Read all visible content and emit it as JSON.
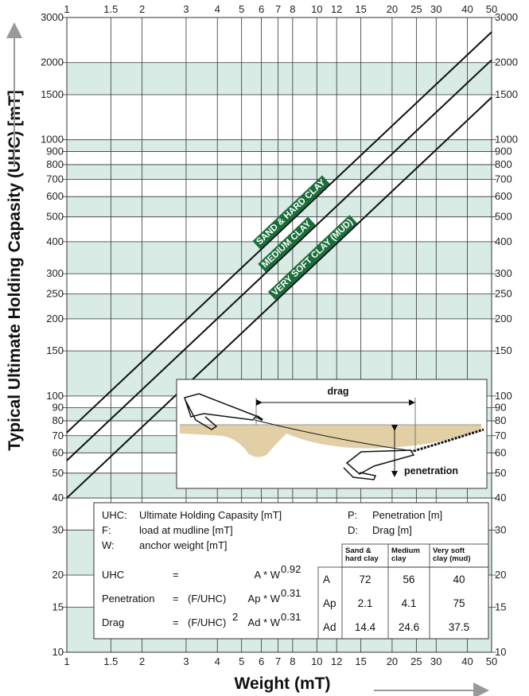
{
  "chart_data": {
    "type": "line",
    "xlabel": "Weight (mT)",
    "ylabel": "Typical Ultimate Holding Capasity (UHC) [mT]",
    "x_scale": "log",
    "y_scale": "log",
    "xlim": [
      1,
      50
    ],
    "ylim": [
      10,
      3000
    ],
    "x_ticks": [
      1,
      1.5,
      2,
      3,
      4,
      5,
      6,
      7,
      8,
      10,
      12,
      15,
      20,
      25,
      30,
      40,
      50
    ],
    "y_ticks": [
      10,
      15,
      20,
      30,
      40,
      50,
      60,
      70,
      80,
      90,
      100,
      150,
      200,
      250,
      300,
      400,
      500,
      600,
      700,
      800,
      900,
      1000,
      1500,
      2000,
      3000
    ],
    "band_color": "#d8ebe4",
    "line_color": "#111111",
    "label_color": "#1a6e3a",
    "series": [
      {
        "name": "SAND & HARD CLAY",
        "A": 72,
        "exponent": 0.92
      },
      {
        "name": "MEDIUM CLAY",
        "A": 56,
        "exponent": 0.92
      },
      {
        "name": "VERY SOFT CLAY (MUD)",
        "A": 40,
        "exponent": 0.92
      }
    ]
  },
  "diagram": {
    "drag_label": "drag",
    "penetration_label": "penetration",
    "seabed_color": "#e2cfa6"
  },
  "legend": {
    "definitions": [
      {
        "abbr": "UHC:",
        "text": "Ultimate Holding Capasity [mT]"
      },
      {
        "abbr": "F:",
        "text": "load at mudline [mT]"
      },
      {
        "abbr": "W:",
        "text": "anchor weight [mT]"
      },
      {
        "abbr": "P:",
        "text": "Penetration [m]"
      },
      {
        "abbr": "D:",
        "text": "Drag [m]"
      }
    ],
    "formulas": [
      {
        "name": "UHC",
        "eq": "=",
        "lhs": "",
        "coef": "A * W",
        "exp": "0.92"
      },
      {
        "name": "Penetration",
        "eq": "=",
        "lhs": "(F/UHC)",
        "coef": "Ap * W",
        "exp": "0.31"
      },
      {
        "name": "Drag",
        "eq": "=",
        "lhs": "(F/UHC)",
        "lhs_exp": "2",
        "coef": "Ad * W",
        "exp": "0.31"
      }
    ],
    "table": {
      "headers": [
        [
          "Sand &",
          "hard clay"
        ],
        [
          "Medium",
          "clay"
        ],
        [
          "Very soft",
          "clay (mud)"
        ]
      ],
      "rows": [
        {
          "label": "A",
          "values": [
            "72",
            "56",
            "40"
          ]
        },
        {
          "label": "Ap",
          "values": [
            "2.1",
            "4.1",
            "75"
          ]
        },
        {
          "label": "Ad",
          "values": [
            "14.4",
            "24.6",
            "37.5"
          ]
        }
      ]
    }
  }
}
